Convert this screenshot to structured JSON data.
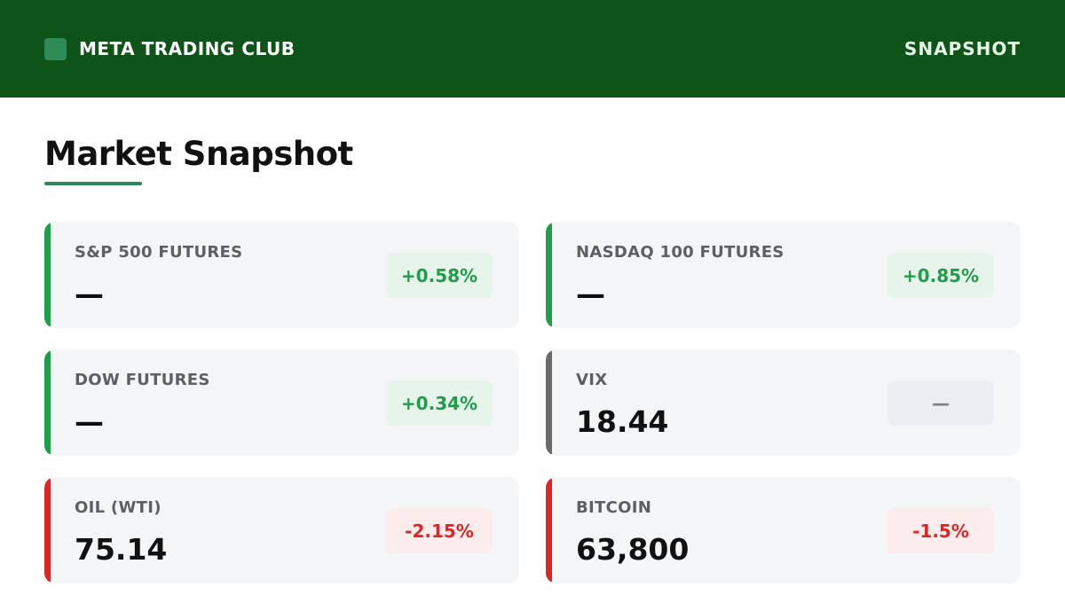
{
  "header": {
    "brand": "META TRADING CLUB",
    "nav_label": "SNAPSHOT",
    "bg_color": "#0e5419",
    "logo_color": "#2e8b57"
  },
  "page": {
    "title": "Market Snapshot",
    "underline_color": "#2e8b57"
  },
  "colors": {
    "up_accent": "#1f9d4a",
    "up_badge_bg": "#e6f4ea",
    "up_badge_text": "#1f9d4a",
    "down_accent": "#dc2626",
    "down_badge_bg": "#fdecec",
    "down_badge_text": "#dc2626",
    "neutral_accent": "#6b6b6b",
    "neutral_badge_bg": "#eceef1",
    "neutral_badge_text": "#7a7f87"
  },
  "cards": [
    {
      "label": "S&P 500 FUTURES",
      "value": "—",
      "change": "+0.58%",
      "trend": "up"
    },
    {
      "label": "NASDAQ 100 FUTURES",
      "value": "—",
      "change": "+0.85%",
      "trend": "up"
    },
    {
      "label": "DOW FUTURES",
      "value": "—",
      "change": "+0.34%",
      "trend": "up"
    },
    {
      "label": "VIX",
      "value": "18.44",
      "change": "—",
      "trend": "neutral"
    },
    {
      "label": "OIL (WTI)",
      "value": "75.14",
      "change": "-2.15%",
      "trend": "down"
    },
    {
      "label": "BITCOIN",
      "value": "63,800",
      "change": "-1.5%",
      "trend": "down"
    }
  ]
}
